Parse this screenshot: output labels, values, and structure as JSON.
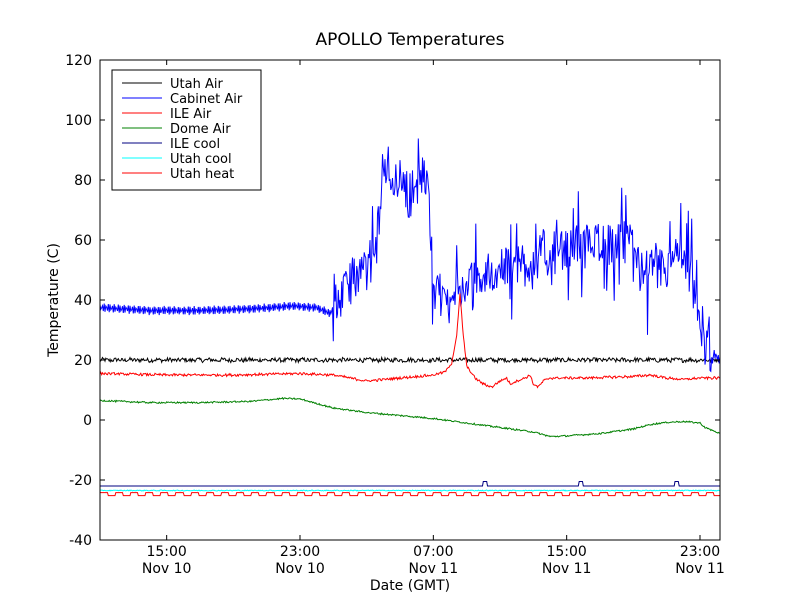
{
  "chart_data": {
    "type": "line",
    "title": "APOLLO Temperatures",
    "xlabel": "Date (GMT)",
    "ylabel": "Temperature (C)",
    "x_unit": "hours since Nov 10 11:00 GMT",
    "xlim": [
      0,
      37.2
    ],
    "ylim": [
      -40,
      120
    ],
    "y_ticks": [
      -40,
      -20,
      0,
      20,
      40,
      60,
      80,
      100,
      120
    ],
    "y_tick_labels": [
      "-40",
      "-20",
      "0",
      "20",
      "40",
      "60",
      "80",
      "100",
      "120"
    ],
    "x_ticks": [
      {
        "x": 4,
        "time": "15:00",
        "date": "Nov 10"
      },
      {
        "x": 12,
        "time": "23:00",
        "date": "Nov 10"
      },
      {
        "x": 20,
        "time": "07:00",
        "date": "Nov 11"
      },
      {
        "x": 28,
        "time": "15:00",
        "date": "Nov 11"
      },
      {
        "x": 36,
        "time": "23:00",
        "date": "Nov 11"
      }
    ],
    "legend_position": "top-left",
    "series": [
      {
        "name": "Utah Air",
        "color": "#000000",
        "base": [
          [
            0,
            20
          ],
          [
            37.2,
            20
          ]
        ],
        "noise": 0.7,
        "noise_period": 0.8
      },
      {
        "name": "Cabinet Air",
        "color": "#0000ff",
        "base": [
          [
            0,
            37.5
          ],
          [
            3,
            36.5
          ],
          [
            6,
            36.5
          ],
          [
            9,
            37
          ],
          [
            11.5,
            38
          ],
          [
            13,
            37.5
          ],
          [
            13.8,
            35.5
          ],
          [
            14.5,
            41
          ],
          [
            15,
            46
          ],
          [
            16,
            50
          ],
          [
            16.5,
            55
          ],
          [
            17,
            85
          ],
          [
            18,
            80
          ],
          [
            18.6,
            75
          ],
          [
            19,
            78
          ],
          [
            19.5,
            82
          ],
          [
            19.8,
            70
          ],
          [
            20,
            46
          ],
          [
            20.4,
            41
          ],
          [
            21,
            40
          ],
          [
            22,
            45
          ],
          [
            24,
            50
          ],
          [
            27,
            55
          ],
          [
            30,
            60
          ],
          [
            31,
            57
          ],
          [
            32,
            60
          ],
          [
            32.5,
            50
          ],
          [
            33,
            50
          ],
          [
            34,
            50
          ],
          [
            34.5,
            55
          ],
          [
            35,
            52
          ],
          [
            35.5,
            48
          ],
          [
            36,
            30
          ],
          [
            36.5,
            24
          ],
          [
            37.2,
            20
          ]
        ],
        "noise": 7,
        "noise_period": 0.12
      },
      {
        "name": "ILE Air",
        "color": "#ff0000",
        "base": [
          [
            0,
            15.5
          ],
          [
            4,
            15
          ],
          [
            8,
            15
          ],
          [
            12,
            15.5
          ],
          [
            14,
            15
          ],
          [
            15,
            14
          ],
          [
            15.5,
            13.5
          ],
          [
            16,
            13
          ],
          [
            18,
            14
          ],
          [
            20,
            15
          ],
          [
            20.7,
            16
          ],
          [
            21.1,
            19
          ],
          [
            21.4,
            28
          ],
          [
            21.6,
            42
          ],
          [
            21.8,
            28
          ],
          [
            22,
            18
          ],
          [
            22.5,
            14
          ],
          [
            23,
            12
          ],
          [
            23.5,
            11
          ],
          [
            24,
            13
          ],
          [
            24.4,
            14
          ],
          [
            24.6,
            12
          ],
          [
            25,
            13
          ],
          [
            25.5,
            14
          ],
          [
            25.8,
            15
          ],
          [
            26,
            12
          ],
          [
            26.3,
            11
          ],
          [
            26.6,
            13
          ],
          [
            27,
            14
          ],
          [
            29,
            14
          ],
          [
            32,
            14.5
          ],
          [
            33,
            15
          ],
          [
            34,
            14
          ],
          [
            35,
            13.5
          ],
          [
            36,
            14
          ],
          [
            37.2,
            14
          ]
        ],
        "noise": 0.4,
        "noise_period": 0.3
      },
      {
        "name": "Dome Air",
        "color": "#008000",
        "base": [
          [
            0,
            6.5
          ],
          [
            3,
            5.8
          ],
          [
            6,
            5.8
          ],
          [
            9,
            6.2
          ],
          [
            11,
            7.2
          ],
          [
            12,
            7
          ],
          [
            13,
            5.5
          ],
          [
            14,
            4
          ],
          [
            16,
            2.5
          ],
          [
            18,
            1.5
          ],
          [
            20,
            0.5
          ],
          [
            22,
            -1
          ],
          [
            24,
            -2.5
          ],
          [
            26,
            -4
          ],
          [
            27,
            -5.5
          ],
          [
            28,
            -5.3
          ],
          [
            30,
            -4.5
          ],
          [
            32,
            -3
          ],
          [
            33,
            -1.5
          ],
          [
            34,
            -0.8
          ],
          [
            35,
            -0.5
          ],
          [
            36,
            -1
          ],
          [
            36.3,
            -2.5
          ],
          [
            37.2,
            -4.5
          ]
        ],
        "noise": 0.25,
        "noise_period": 0.15
      },
      {
        "name": "ILE cool",
        "color": "#000080",
        "base": [
          [
            0,
            -22
          ],
          [
            37.2,
            -22
          ]
        ],
        "noise": 0,
        "noise_period": 1
      },
      {
        "name": "Utah cool",
        "color": "#00ffff",
        "base": [
          [
            0,
            -23.5
          ],
          [
            37.2,
            -23.5
          ]
        ],
        "noise": 0.15,
        "noise_period": 0.5
      },
      {
        "name": "Utah heat",
        "color": "#ff0000",
        "base": [
          [
            0,
            -25
          ],
          [
            37.2,
            -25
          ]
        ],
        "noise": 0,
        "noise_period": 1
      }
    ]
  }
}
